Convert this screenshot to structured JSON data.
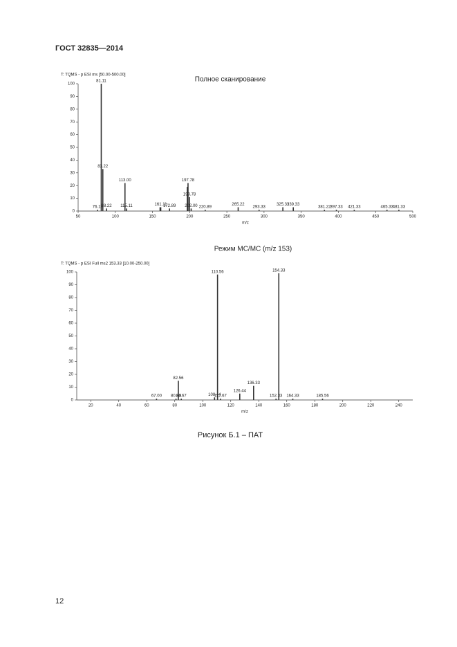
{
  "header": {
    "title": "ГОСТ 32835—2014"
  },
  "chart_data": [
    {
      "type": "spectrum",
      "header": "T: TQMS - p ESI ms [50.00-500.00]",
      "title": "Полное сканирование",
      "x_label": "m/z",
      "xlim": [
        50,
        500
      ],
      "xticks": [
        50,
        100,
        150,
        200,
        250,
        300,
        350,
        400,
        450,
        500
      ],
      "ylim": [
        0,
        100
      ],
      "yticks": [
        0,
        10,
        20,
        30,
        40,
        50,
        60,
        70,
        80,
        90,
        100
      ],
      "color": "#333333",
      "x": [
        76.11,
        81.11,
        83.22,
        88.22,
        113.0,
        115.11,
        160.2,
        161.11,
        172.89,
        196.8,
        197.78,
        199.78,
        202.0,
        220.89,
        265.22,
        293.33,
        325.33,
        339.33,
        381.22,
        397.33,
        421.33,
        465.33,
        481.33
      ],
      "x_labels": [
        "76.11",
        "81.11",
        "83.22",
        "88.22",
        "113.00",
        "115.11",
        null,
        "161.11",
        "172.89",
        null,
        "197.78",
        "199.78",
        "202.00",
        "220.89",
        "265.22",
        "293.33",
        "325.33",
        "339.33",
        "381.22",
        "397.33",
        "421.33",
        "465.33",
        "481.33"
      ],
      "values": [
        1,
        100,
        33,
        2,
        22,
        2,
        3,
        3,
        2,
        19,
        22,
        11,
        2,
        1,
        3,
        1,
        3,
        3,
        1,
        1,
        1,
        1,
        1
      ]
    },
    {
      "type": "spectrum",
      "header": "T: TQMS - p ESI Full ms2 153.33 [10.00-250.00]",
      "title": "Режим МС/МС (m/z 153)",
      "x_label": "m/z",
      "xlim": [
        10,
        250
      ],
      "xticks": [
        20,
        40,
        60,
        80,
        100,
        120,
        140,
        160,
        180,
        200,
        220,
        240
      ],
      "ylim": [
        0,
        100
      ],
      "yticks": [
        0,
        10,
        20,
        30,
        40,
        50,
        60,
        70,
        80,
        90,
        100
      ],
      "color": "#333333",
      "x": [
        67.0,
        80.89,
        82.56,
        84.67,
        108.44,
        110.56,
        112.67,
        126.44,
        136.33,
        152.33,
        154.33,
        164.33,
        185.56
      ],
      "x_labels": [
        "67.00",
        "80.89",
        "82.56",
        "84.67",
        "108.44",
        "110.56",
        "112.67",
        "126.44",
        "136.33",
        "152.33",
        "154.33",
        "164.33",
        "185.56"
      ],
      "values": [
        1,
        1,
        15,
        1,
        2,
        98,
        1,
        5,
        11,
        1,
        99,
        1,
        1
      ]
    }
  ],
  "caption": "Рисунок Б.1 – ПАТ",
  "page_number": "12"
}
